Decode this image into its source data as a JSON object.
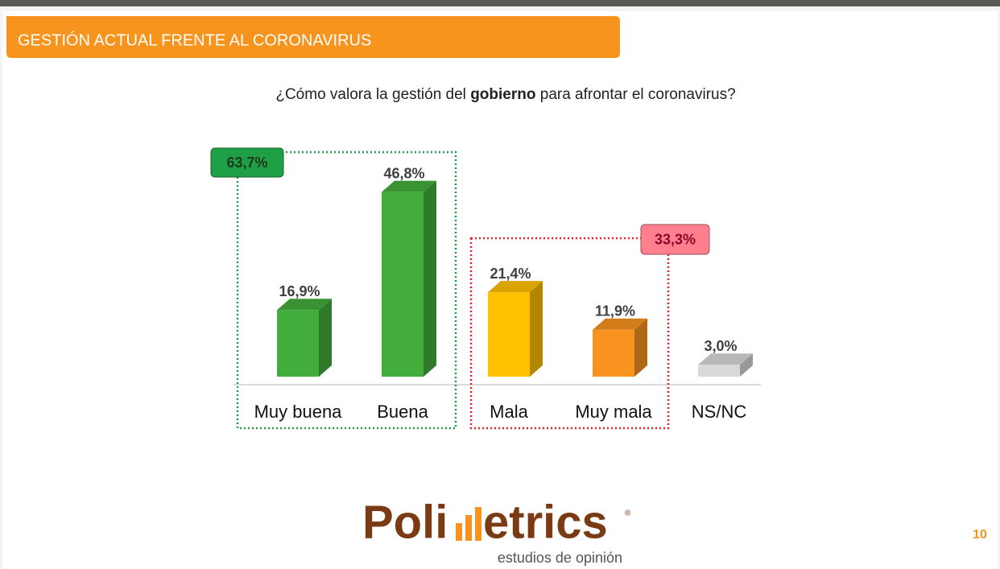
{
  "header": {
    "title": "GESTIÓN ACTUAL FRENTE AL CORONAVIRUS"
  },
  "chart_data": {
    "type": "bar3d",
    "title": {
      "before": "¿Cómo valora la gestión del ",
      "bold": "gobierno",
      "after": " para afrontar el coronavirus?"
    },
    "categories": [
      "Muy buena",
      "Buena",
      "Mala",
      "Muy mala",
      "NS/NC"
    ],
    "values": [
      16.9,
      46.8,
      21.4,
      11.9,
      3.0
    ],
    "value_labels": [
      "16,9%",
      "46,8%",
      "21,4%",
      "11,9%",
      "3,0%"
    ],
    "colors": [
      "#43ad3c",
      "#43ad3c",
      "#ffc000",
      "#f7931e",
      "#d9d9d9"
    ],
    "groups": [
      {
        "value": 63.7,
        "value_label": "63,7%",
        "color": "#1fa046",
        "text_color": "#1d3b1d",
        "border": "#1fa046"
      },
      {
        "value": 33.3,
        "value_label": "33,3%",
        "color": "#ff7f8e",
        "text_color": "#8b0a2a",
        "border": "#e8202a"
      }
    ]
  },
  "logo": {
    "left": "Poli",
    "right": "etrics",
    "mark": "®",
    "tagline": "estudios de opinión"
  },
  "page_number": "10"
}
